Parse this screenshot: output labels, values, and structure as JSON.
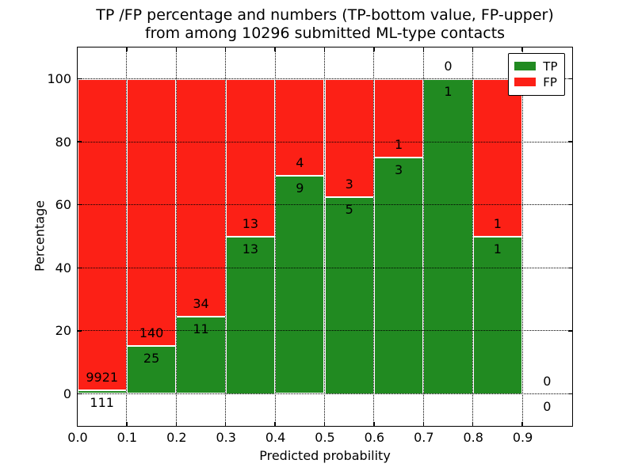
{
  "title": {
    "line1": "TP /FP percentage and numbers (TP-bottom value, FP-upper)",
    "line2": "from among 10296 submitted ML-type contacts"
  },
  "axes": {
    "xlabel": "Predicted probability",
    "ylabel": "Percentage",
    "x_tick_labels": [
      "0.0",
      "0.1",
      "0.2",
      "0.3",
      "0.4",
      "0.5",
      "0.6",
      "0.7",
      "0.8",
      "0.9"
    ],
    "y_tick_labels": [
      "0",
      "20",
      "40",
      "60",
      "80",
      "100"
    ],
    "y_tick_values": [
      0,
      20,
      40,
      60,
      80,
      100
    ],
    "xlim": [
      0.0,
      1.0
    ],
    "ylim": [
      -10,
      110
    ],
    "grid_style": "dotted"
  },
  "legend": {
    "position": "upper right",
    "entries": [
      {
        "label": "TP",
        "color": "#218a21"
      },
      {
        "label": "FP",
        "color": "#fc2016"
      }
    ]
  },
  "chart_data": {
    "type": "bar",
    "stacked": true,
    "total_contacts": 10296,
    "bin_width": 0.1,
    "bin_starts": [
      0.0,
      0.1,
      0.2,
      0.3,
      0.4,
      0.5,
      0.6,
      0.7,
      0.8,
      0.9
    ],
    "series": [
      {
        "name": "TP",
        "color": "#218a21",
        "counts": [
          111,
          25,
          11,
          13,
          9,
          5,
          3,
          1,
          1,
          0
        ]
      },
      {
        "name": "FP",
        "color": "#fc2016",
        "counts": [
          9921,
          140,
          34,
          13,
          4,
          3,
          1,
          0,
          1,
          0
        ]
      }
    ],
    "tp_percent": [
      1.11,
      15.15,
      24.44,
      50.0,
      69.23,
      62.5,
      75.0,
      100.0,
      50.0,
      null
    ],
    "label_rule": "FP count printed above TP/FP boundary, TP count printed below boundary"
  },
  "colors": {
    "tp": "#218a21",
    "fp": "#fc2016",
    "grid": "#000000",
    "spine": "#000000",
    "background": "#ffffff",
    "bar_edge": "#ffffff"
  }
}
